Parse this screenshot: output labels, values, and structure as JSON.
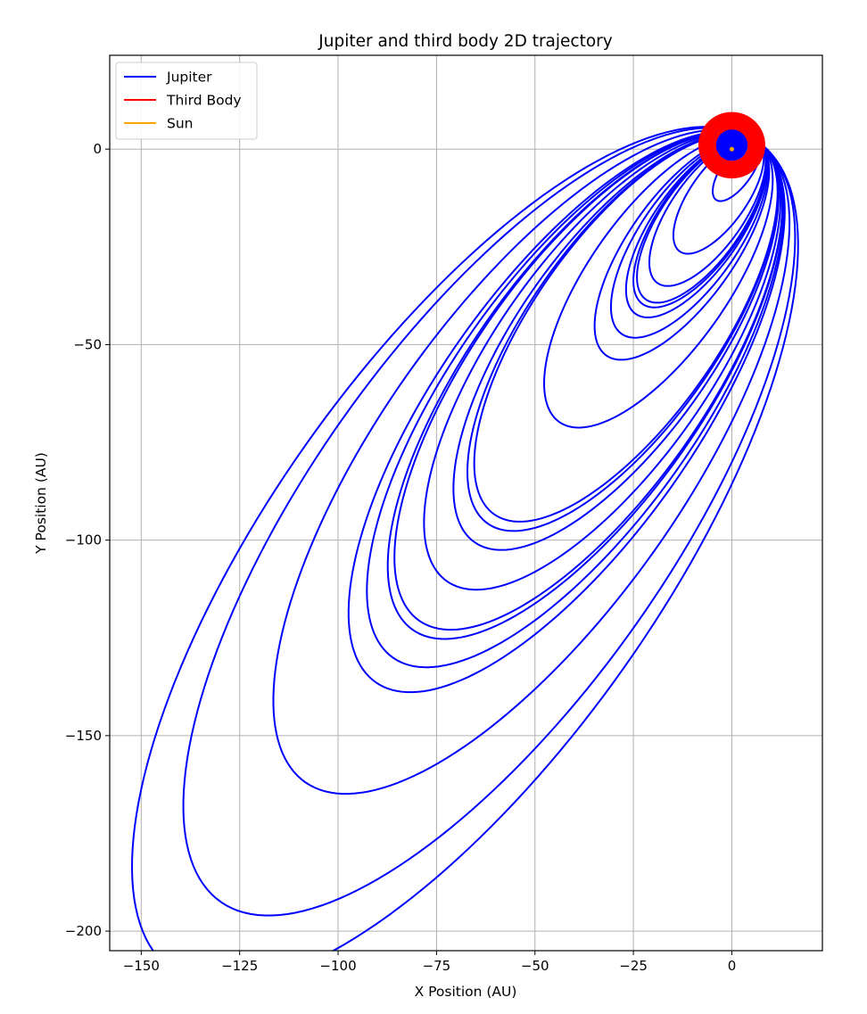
{
  "chart_data": {
    "type": "line",
    "title": "Jupiter and third body 2D trajectory",
    "xlabel": "X Position (AU)",
    "ylabel": "Y Position (AU)",
    "xlim": [
      -158,
      23
    ],
    "ylim": [
      -205,
      24
    ],
    "xticks": [
      -150,
      -125,
      -100,
      -75,
      -50,
      -25,
      0
    ],
    "xtick_labels": [
      "−150",
      "−125",
      "−100",
      "−75",
      "−50",
      "−25",
      "0"
    ],
    "yticks": [
      0,
      -50,
      -100,
      -150,
      -200
    ],
    "ytick_labels": [
      "0",
      "−50",
      "−100",
      "−150",
      "−200"
    ],
    "grid": true,
    "legend_position": "top-left",
    "series": [
      {
        "name": "Jupiter",
        "color": "#0000ff",
        "shape": "ellipse-family",
        "orbits": [
          {
            "lowest_y": -7,
            "leftmost_x": -3
          },
          {
            "lowest_y": -16,
            "leftmost_x": -16
          },
          {
            "lowest_y": -18,
            "leftmost_x": -26
          },
          {
            "lowest_y": -24,
            "leftmost_x": -30
          },
          {
            "lowest_y": -26,
            "leftmost_x": -27
          },
          {
            "lowest_y": -28,
            "leftmost_x": -31
          },
          {
            "lowest_y": -30,
            "leftmost_x": -37
          },
          {
            "lowest_y": -41,
            "leftmost_x": -37
          },
          {
            "lowest_y": -57,
            "leftmost_x": -50
          },
          {
            "lowest_y": -78,
            "leftmost_x": -69
          },
          {
            "lowest_y": -81,
            "leftmost_x": -70
          },
          {
            "lowest_y": -82,
            "leftmost_x": -77
          },
          {
            "lowest_y": -94,
            "leftmost_x": -82
          },
          {
            "lowest_y": -104,
            "leftmost_x": -89
          },
          {
            "lowest_y": -105,
            "leftmost_x": -92
          },
          {
            "lowest_y": -113,
            "leftmost_x": -96
          },
          {
            "lowest_y": -124,
            "leftmost_x": -95
          },
          {
            "lowest_y": -148,
            "leftmost_x": -114
          },
          {
            "lowest_y": -179,
            "leftmost_x": -134
          },
          {
            "lowest_y": -193,
            "leftmost_x": -150
          }
        ],
        "inner_disk_radius": 4
      },
      {
        "name": "Third Body",
        "color": "#ff0000",
        "shape": "ring",
        "inner_radius": 4,
        "outer_radius": 8.5
      },
      {
        "name": "Sun",
        "color": "#ffa500",
        "shape": "point",
        "x": 0,
        "y": 0
      }
    ]
  }
}
